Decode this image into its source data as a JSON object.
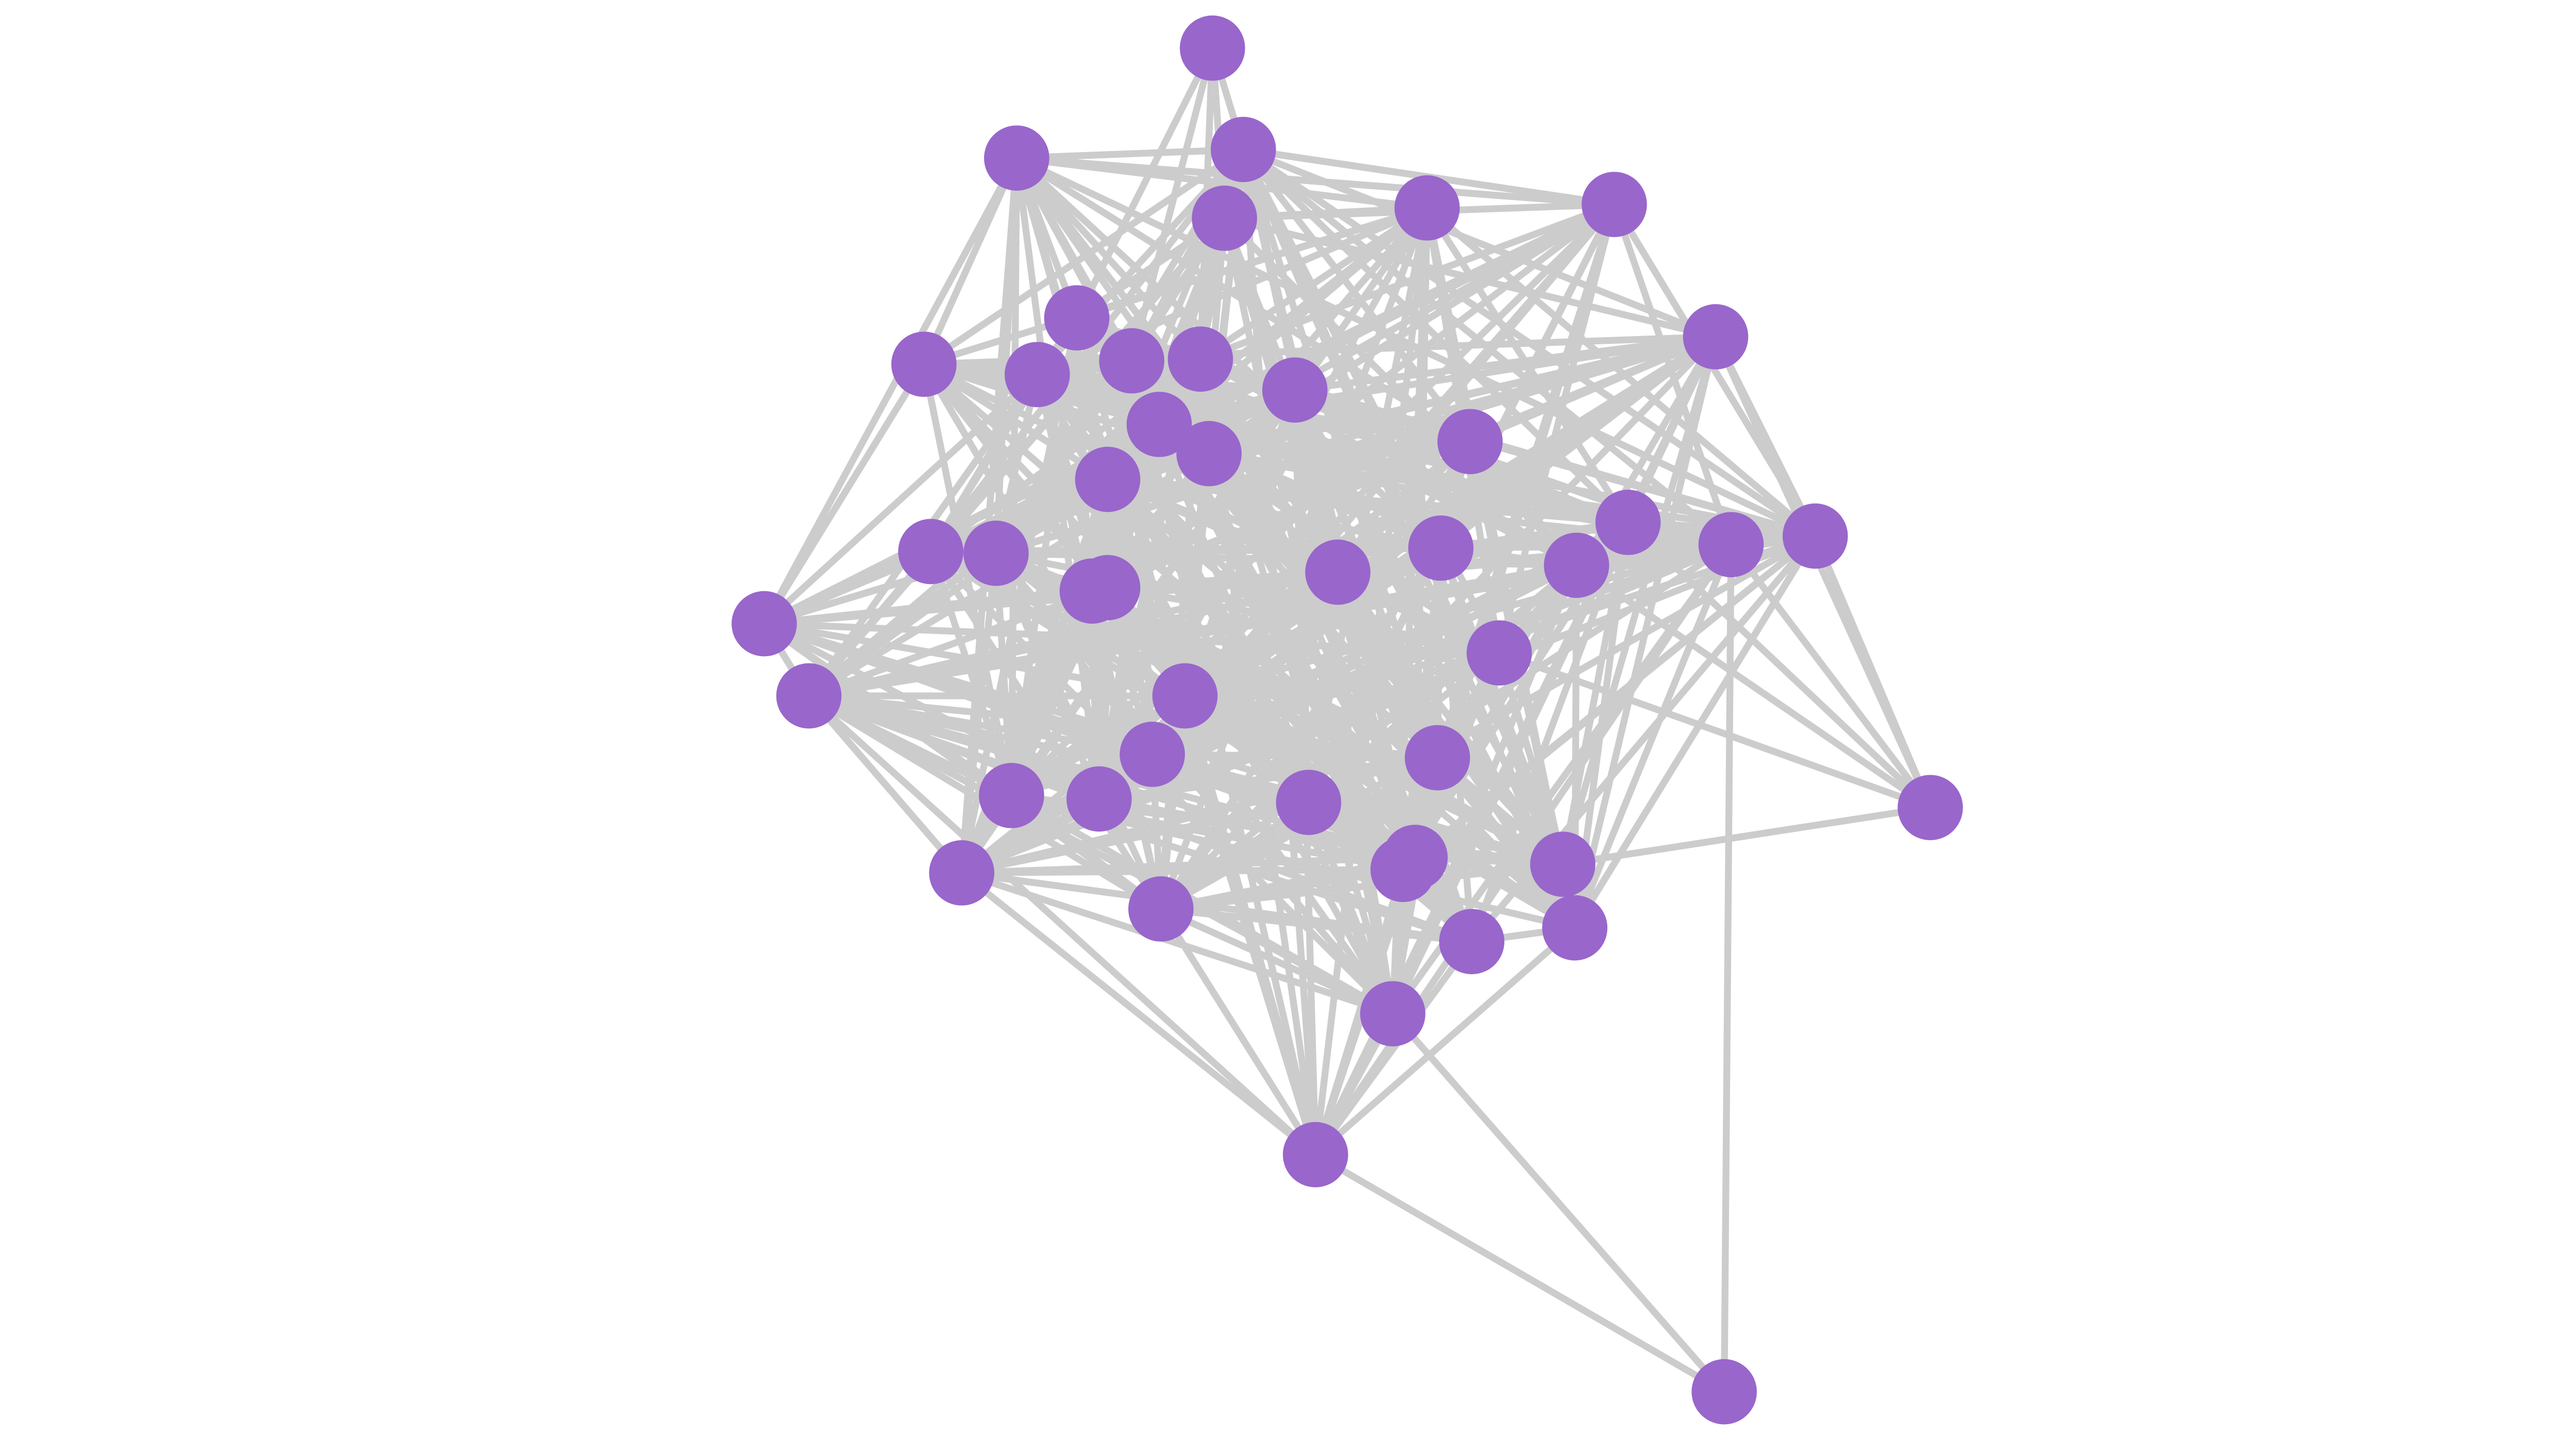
{
  "graph": {
    "node_color": "#9966cc",
    "edge_color": "#cccccc",
    "background": "#ffffff",
    "nodes": [
      "n1",
      "n2",
      "n3",
      "n4",
      "n5",
      "n6",
      "n7",
      "n8",
      "n9",
      "n10",
      "n11",
      "n12",
      "n13",
      "n14",
      "n15",
      "n16",
      "n17",
      "n18",
      "n19",
      "n20",
      "n21",
      "n22",
      "n23",
      "n24",
      "n25",
      "n26",
      "n27",
      "n28",
      "n29",
      "n30",
      "n31",
      "n32",
      "n33",
      "n34",
      "n35",
      "n36",
      "n37",
      "n38",
      "n39",
      "n40",
      "n41",
      "n42",
      "n43",
      "n44",
      "n45",
      "n46",
      "n47"
    ],
    "peripheral_edges": [
      [
        "n47",
        "n46"
      ],
      [
        "n47",
        "n45"
      ],
      [
        "n47",
        "n19"
      ],
      [
        "n1",
        "n3"
      ],
      [
        "n1",
        "n4"
      ],
      [
        "n1",
        "n9"
      ],
      [
        "n1",
        "n12"
      ],
      [
        "n1",
        "n11"
      ],
      [
        "n28",
        "n2"
      ],
      [
        "n28",
        "n8"
      ],
      [
        "n28",
        "n29"
      ],
      [
        "n29",
        "n38"
      ],
      [
        "n37",
        "n20"
      ],
      [
        "n37",
        "n19"
      ],
      [
        "n37",
        "n7"
      ],
      [
        "n37",
        "n18"
      ],
      [
        "n37",
        "n27"
      ],
      [
        "n37",
        "n30"
      ],
      [
        "n37",
        "n41"
      ],
      [
        "n20",
        "n7"
      ],
      [
        "n20",
        "n44"
      ],
      [
        "n20",
        "n6"
      ],
      [
        "n2",
        "n6"
      ],
      [
        "n3",
        "n6"
      ],
      [
        "n38",
        "n46"
      ],
      [
        "n29",
        "n46"
      ],
      [
        "n44",
        "n46"
      ],
      [
        "n43",
        "n46"
      ]
    ]
  }
}
